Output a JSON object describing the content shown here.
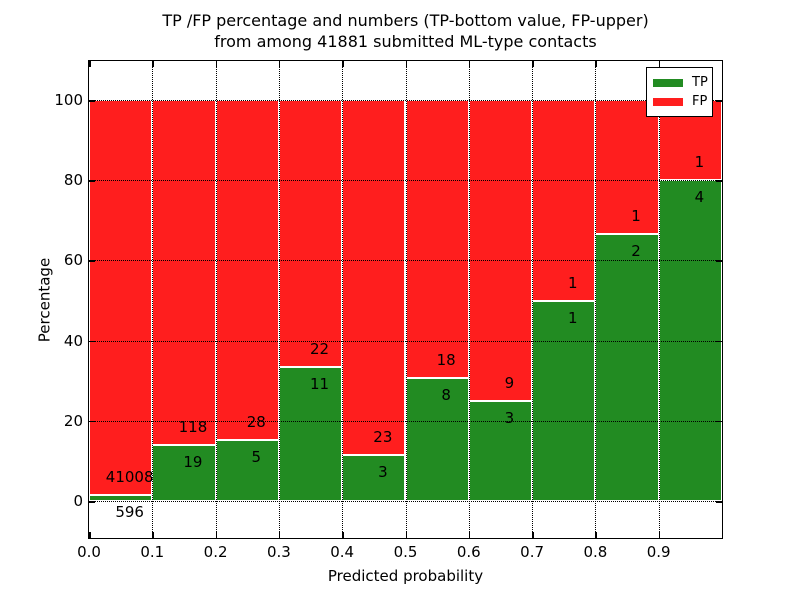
{
  "title": {
    "line1": "TP /FP percentage and numbers (TP-bottom value, FP-upper)",
    "line2": "from among 41881 submitted ML-type contacts"
  },
  "axes": {
    "xlabel": "Predicted probability",
    "ylabel": "Percentage",
    "x_tick_labels": [
      "0.0",
      "0.1",
      "0.2",
      "0.3",
      "0.4",
      "0.5",
      "0.6",
      "0.7",
      "0.8",
      "0.9"
    ],
    "y_tick_labels": [
      "0",
      "20",
      "40",
      "60",
      "80",
      "100"
    ],
    "y_tick_values": [
      0,
      20,
      40,
      60,
      80,
      100
    ]
  },
  "legend": {
    "items": [
      {
        "label": "TP",
        "color": "#228b22"
      },
      {
        "label": "FP",
        "color": "#ff1e1e"
      }
    ]
  },
  "colors": {
    "tp": "#228b22",
    "fp": "#ff1e1e",
    "bar_edge": "#ffffff",
    "grid": "#000000",
    "axis": "#000000"
  },
  "chart_data": {
    "type": "bar",
    "stacked": true,
    "normalized": "percent",
    "title": "TP /FP percentage and numbers (TP-bottom value, FP-upper) from among 41881 submitted ML-type contacts",
    "xlabel": "Predicted probability",
    "ylabel": "Percentage",
    "bin_edges": [
      0.0,
      0.1,
      0.2,
      0.3,
      0.4,
      0.5,
      0.6,
      0.7,
      0.8,
      0.9,
      1.0
    ],
    "series": [
      {
        "name": "TP",
        "color": "#228b22",
        "counts": [
          596,
          19,
          5,
          11,
          3,
          8,
          3,
          1,
          2,
          4
        ]
      },
      {
        "name": "FP",
        "color": "#ff1e1e",
        "counts": [
          41008,
          118,
          28,
          22,
          23,
          18,
          9,
          1,
          1,
          1
        ]
      }
    ],
    "tp_percent": [
      1.4325,
      13.8686,
      15.1515,
      33.3333,
      11.5385,
      30.7692,
      25.0,
      50.0,
      66.6667,
      80.0
    ],
    "total_contacts": 41881,
    "xlim": [
      0.0,
      1.0
    ],
    "ylim": [
      -10,
      110
    ],
    "grid": true,
    "grid_style": "dotted",
    "legend_position": "upper right"
  }
}
